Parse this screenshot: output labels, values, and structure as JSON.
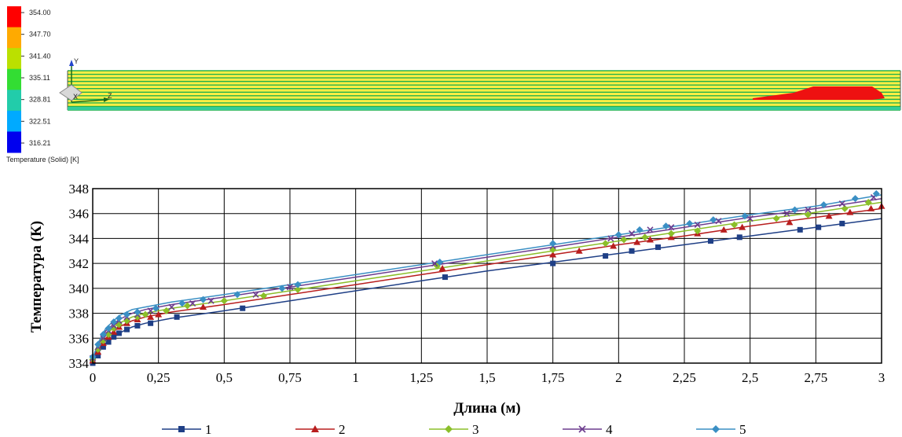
{
  "colorbar": {
    "ticks": [
      "354.00",
      "347.70",
      "341.40",
      "335.11",
      "328.81",
      "322.51",
      "316.21"
    ],
    "title": "Temperature (Solid) [K]",
    "colors": [
      "#ff0000",
      "#ffaa00",
      "#bbe000",
      "#33dd33",
      "#22ccaa",
      "#00aaff",
      "#0000ee"
    ]
  },
  "triad": {
    "y_label": "Y",
    "z_label": "Z",
    "x_label": "X"
  },
  "cfd_model": {
    "fill_color": "#ffee44",
    "line_color": "#22b14c",
    "hot_color": "#ee1111"
  },
  "chart_data": {
    "type": "line",
    "xlabel": "Длина (м)",
    "ylabel": "Температура (К)",
    "xlim": [
      0,
      3
    ],
    "ylim": [
      334,
      348
    ],
    "xticks": [
      0,
      0.25,
      0.5,
      0.75,
      1,
      1.25,
      1.5,
      1.75,
      2,
      2.25,
      2.5,
      2.75,
      3
    ],
    "xtick_labels": [
      "0",
      "0,25",
      "0,5",
      "0,75",
      "1",
      "1,25",
      "1,5",
      "1,75",
      "2",
      "2,25",
      "2,5",
      "2,75",
      "3"
    ],
    "yticks": [
      334,
      336,
      338,
      340,
      342,
      344,
      346,
      348
    ],
    "ytick_labels": [
      "334",
      "336",
      "338",
      "340",
      "342",
      "344",
      "346",
      "348"
    ],
    "grid": true,
    "legend_position": "bottom",
    "series": [
      {
        "name": "1",
        "color": "#1f3f86",
        "marker": "square",
        "line": [
          [
            0,
            334.0
          ],
          [
            0.02,
            334.8
          ],
          [
            0.05,
            335.6
          ],
          [
            0.1,
            336.4
          ],
          [
            0.15,
            336.9
          ],
          [
            0.2,
            337.2
          ],
          [
            0.3,
            337.6
          ],
          [
            0.5,
            338.2
          ],
          [
            0.75,
            339.0
          ],
          [
            1.0,
            339.8
          ],
          [
            1.25,
            340.6
          ],
          [
            1.5,
            341.4
          ],
          [
            1.75,
            342.1
          ],
          [
            2.0,
            342.8
          ],
          [
            2.25,
            343.5
          ],
          [
            2.5,
            344.2
          ],
          [
            2.75,
            344.9
          ],
          [
            3.0,
            345.6
          ]
        ],
        "points": [
          [
            0,
            334.0
          ],
          [
            0.02,
            334.6
          ],
          [
            0.04,
            335.3
          ],
          [
            0.06,
            335.7
          ],
          [
            0.08,
            336.1
          ],
          [
            0.1,
            336.4
          ],
          [
            0.13,
            336.7
          ],
          [
            0.17,
            337.0
          ],
          [
            0.22,
            337.2
          ],
          [
            0.32,
            337.7
          ],
          [
            0.57,
            338.4
          ],
          [
            1.34,
            340.9
          ],
          [
            1.75,
            342.0
          ],
          [
            1.95,
            342.6
          ],
          [
            2.05,
            343.0
          ],
          [
            2.15,
            343.3
          ],
          [
            2.35,
            343.8
          ],
          [
            2.46,
            344.1
          ],
          [
            2.69,
            344.7
          ],
          [
            2.76,
            344.9
          ],
          [
            2.85,
            345.2
          ]
        ]
      },
      {
        "name": "2",
        "color": "#b81e1e",
        "marker": "triangle",
        "line": [
          [
            0,
            334.1
          ],
          [
            0.02,
            335.0
          ],
          [
            0.05,
            336.0
          ],
          [
            0.1,
            336.9
          ],
          [
            0.15,
            337.4
          ],
          [
            0.2,
            337.7
          ],
          [
            0.3,
            338.1
          ],
          [
            0.5,
            338.7
          ],
          [
            0.75,
            339.5
          ],
          [
            1.0,
            340.3
          ],
          [
            1.25,
            341.1
          ],
          [
            1.5,
            341.9
          ],
          [
            1.75,
            342.7
          ],
          [
            2.0,
            343.5
          ],
          [
            2.25,
            344.2
          ],
          [
            2.5,
            345.0
          ],
          [
            2.75,
            345.7
          ],
          [
            3.0,
            346.4
          ]
        ],
        "points": [
          [
            0,
            334.2
          ],
          [
            0.02,
            334.9
          ],
          [
            0.04,
            335.6
          ],
          [
            0.06,
            336.1
          ],
          [
            0.08,
            336.5
          ],
          [
            0.1,
            336.9
          ],
          [
            0.13,
            337.2
          ],
          [
            0.17,
            337.5
          ],
          [
            0.22,
            337.7
          ],
          [
            0.25,
            337.9
          ],
          [
            0.42,
            338.5
          ],
          [
            1.33,
            341.6
          ],
          [
            1.75,
            342.7
          ],
          [
            1.85,
            343.0
          ],
          [
            1.98,
            343.4
          ],
          [
            2.07,
            343.7
          ],
          [
            2.12,
            343.9
          ],
          [
            2.2,
            344.1
          ],
          [
            2.3,
            344.4
          ],
          [
            2.4,
            344.7
          ],
          [
            2.47,
            344.9
          ],
          [
            2.65,
            345.3
          ],
          [
            2.8,
            345.8
          ],
          [
            2.88,
            346.1
          ],
          [
            2.96,
            346.4
          ],
          [
            3.0,
            346.6
          ]
        ]
      },
      {
        "name": "3",
        "color": "#8bbf2a",
        "marker": "diamond",
        "line": [
          [
            0,
            334.2
          ],
          [
            0.02,
            335.2
          ],
          [
            0.05,
            336.3
          ],
          [
            0.1,
            337.2
          ],
          [
            0.15,
            337.7
          ],
          [
            0.2,
            338.0
          ],
          [
            0.3,
            338.4
          ],
          [
            0.5,
            339.0
          ],
          [
            0.75,
            339.8
          ],
          [
            1.0,
            340.6
          ],
          [
            1.25,
            341.4
          ],
          [
            1.5,
            342.2
          ],
          [
            1.75,
            343.0
          ],
          [
            2.0,
            343.8
          ],
          [
            2.25,
            344.6
          ],
          [
            2.5,
            345.4
          ],
          [
            2.75,
            346.1
          ],
          [
            3.0,
            346.9
          ]
        ],
        "points": [
          [
            0,
            334.3
          ],
          [
            0.02,
            335.1
          ],
          [
            0.04,
            335.8
          ],
          [
            0.06,
            336.3
          ],
          [
            0.08,
            336.8
          ],
          [
            0.1,
            337.1
          ],
          [
            0.13,
            337.4
          ],
          [
            0.17,
            337.7
          ],
          [
            0.2,
            337.9
          ],
          [
            0.28,
            338.2
          ],
          [
            0.36,
            338.6
          ],
          [
            0.5,
            339.0
          ],
          [
            0.65,
            339.4
          ],
          [
            0.78,
            339.9
          ],
          [
            1.31,
            341.8
          ],
          [
            1.75,
            343.1
          ],
          [
            1.95,
            343.6
          ],
          [
            2.02,
            343.9
          ],
          [
            2.1,
            344.1
          ],
          [
            2.2,
            344.4
          ],
          [
            2.3,
            344.6
          ],
          [
            2.44,
            345.1
          ],
          [
            2.6,
            345.6
          ],
          [
            2.72,
            345.9
          ],
          [
            2.86,
            346.4
          ],
          [
            2.95,
            346.9
          ]
        ]
      },
      {
        "name": "4",
        "color": "#6c3c8e",
        "marker": "x",
        "line": [
          [
            0,
            334.3
          ],
          [
            0.02,
            335.4
          ],
          [
            0.05,
            336.6
          ],
          [
            0.1,
            337.5
          ],
          [
            0.15,
            338.0
          ],
          [
            0.2,
            338.3
          ],
          [
            0.3,
            338.7
          ],
          [
            0.5,
            339.3
          ],
          [
            0.75,
            340.1
          ],
          [
            1.0,
            340.9
          ],
          [
            1.25,
            341.7
          ],
          [
            1.5,
            342.5
          ],
          [
            1.75,
            343.3
          ],
          [
            2.0,
            344.1
          ],
          [
            2.25,
            344.9
          ],
          [
            2.5,
            345.7
          ],
          [
            2.75,
            346.4
          ],
          [
            3.0,
            347.2
          ]
        ],
        "points": [
          [
            0,
            334.4
          ],
          [
            0.02,
            335.3
          ],
          [
            0.04,
            336.0
          ],
          [
            0.06,
            336.6
          ],
          [
            0.08,
            337.0
          ],
          [
            0.1,
            337.4
          ],
          [
            0.13,
            337.7
          ],
          [
            0.17,
            337.9
          ],
          [
            0.22,
            338.2
          ],
          [
            0.3,
            338.5
          ],
          [
            0.38,
            338.8
          ],
          [
            0.45,
            339.0
          ],
          [
            0.62,
            339.5
          ],
          [
            0.75,
            340.1
          ],
          [
            1.3,
            342.0
          ],
          [
            1.75,
            343.4
          ],
          [
            1.97,
            344.0
          ],
          [
            2.05,
            344.4
          ],
          [
            2.12,
            344.7
          ],
          [
            2.2,
            344.9
          ],
          [
            2.3,
            345.1
          ],
          [
            2.38,
            345.4
          ],
          [
            2.5,
            345.6
          ],
          [
            2.64,
            346.0
          ],
          [
            2.72,
            346.3
          ],
          [
            2.85,
            346.8
          ],
          [
            2.97,
            347.3
          ]
        ]
      },
      {
        "name": "5",
        "color": "#3a8fc4",
        "marker": "diamond",
        "line": [
          [
            0,
            334.4
          ],
          [
            0.02,
            335.6
          ],
          [
            0.05,
            336.8
          ],
          [
            0.1,
            337.8
          ],
          [
            0.15,
            338.3
          ],
          [
            0.2,
            338.5
          ],
          [
            0.3,
            338.9
          ],
          [
            0.5,
            339.5
          ],
          [
            0.75,
            340.3
          ],
          [
            1.0,
            341.1
          ],
          [
            1.25,
            341.9
          ],
          [
            1.5,
            342.7
          ],
          [
            1.75,
            343.5
          ],
          [
            2.0,
            344.3
          ],
          [
            2.25,
            345.1
          ],
          [
            2.5,
            345.9
          ],
          [
            2.75,
            346.6
          ],
          [
            3.0,
            347.5
          ]
        ],
        "points": [
          [
            0,
            334.5
          ],
          [
            0.02,
            335.5
          ],
          [
            0.04,
            336.3
          ],
          [
            0.06,
            336.8
          ],
          [
            0.08,
            337.3
          ],
          [
            0.1,
            337.6
          ],
          [
            0.13,
            337.9
          ],
          [
            0.17,
            338.1
          ],
          [
            0.24,
            338.4
          ],
          [
            0.34,
            338.8
          ],
          [
            0.42,
            339.1
          ],
          [
            0.55,
            339.5
          ],
          [
            0.72,
            340.0
          ],
          [
            0.78,
            340.3
          ],
          [
            1.32,
            342.1
          ],
          [
            1.75,
            343.6
          ],
          [
            2.0,
            344.3
          ],
          [
            2.08,
            344.7
          ],
          [
            2.18,
            345.0
          ],
          [
            2.27,
            345.2
          ],
          [
            2.36,
            345.5
          ],
          [
            2.48,
            345.8
          ],
          [
            2.67,
            346.3
          ],
          [
            2.78,
            346.7
          ],
          [
            2.9,
            347.2
          ],
          [
            2.98,
            347.6
          ]
        ]
      }
    ]
  }
}
